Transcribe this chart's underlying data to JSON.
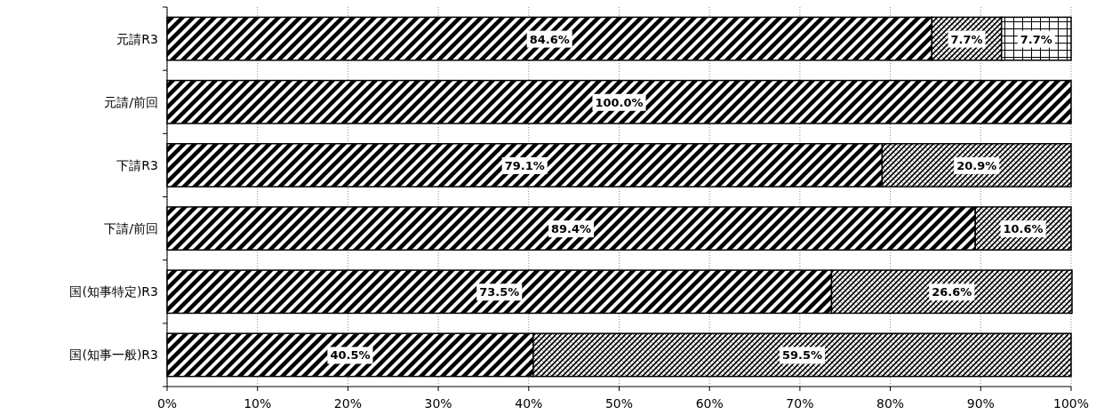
{
  "chart_data": {
    "type": "bar",
    "orientation": "horizontal",
    "stacked": true,
    "categories": [
      "元請R3",
      "元請/前回",
      "下請R3",
      "下請/前回",
      "国(知事特定)R3",
      "国(知事一般)R3"
    ],
    "series": [
      {
        "color": "#000000",
        "values": [
          84.6,
          100,
          79.1,
          89.4,
          73.5,
          40.5
        ],
        "value_labels": [
          "84.6%",
          "100.0%",
          "79.1%",
          "89.4%",
          "73.5%",
          "40.5%"
        ]
      },
      {
        "color": "#000000",
        "values": [
          7.7,
          0,
          20.9,
          10.6,
          26.6,
          59.5
        ],
        "value_labels": [
          "7.7%",
          null,
          "20.9%",
          "10.6%",
          "26.6%",
          "59.5%"
        ]
      },
      {
        "color": "#000000",
        "values": [
          7.7,
          0,
          0,
          0,
          0,
          0
        ],
        "value_labels": [
          "7.7%",
          null,
          null,
          null,
          null,
          null
        ]
      }
    ],
    "xlim": [
      0,
      100
    ],
    "xticks": [
      {
        "value": 0,
        "label": "0%"
      },
      {
        "value": 10,
        "label": "10%"
      },
      {
        "value": 20,
        "label": "20%"
      },
      {
        "value": 30,
        "label": "30%"
      },
      {
        "value": 40,
        "label": "40%"
      },
      {
        "value": 50,
        "label": "50%"
      },
      {
        "value": 60,
        "label": "60%"
      },
      {
        "value": 70,
        "label": "70%"
      },
      {
        "value": 80,
        "label": "80%"
      },
      {
        "value": 90,
        "label": "90%"
      },
      {
        "value": 100,
        "label": "100%"
      }
    ],
    "grid": "x"
  }
}
